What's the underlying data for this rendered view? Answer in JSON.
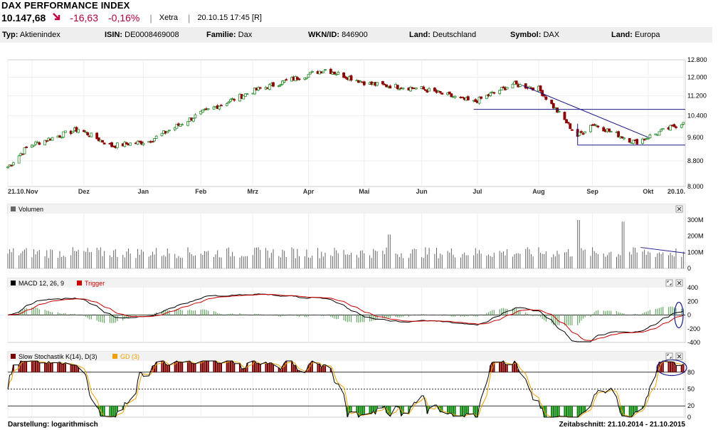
{
  "header": {
    "title": "DAX PERFORMANCE INDEX",
    "price": "10.147,68",
    "change": "-16,63",
    "change_pct": "-0,16%",
    "exchange": "Xetra",
    "timestamp": "20.10.15 17:45 [R]",
    "trend_icon": "arrow-down-right-icon",
    "down_color": "#b0003a"
  },
  "info": [
    {
      "label": "Typ:",
      "value": "Aktienindex"
    },
    {
      "label": "ISIN:",
      "value": "DE0008469008"
    },
    {
      "label": "Familie:",
      "value": "Dax"
    },
    {
      "label": "WKN/ID:",
      "value": "846900"
    },
    {
      "label": "Land:",
      "value": "Deutschland"
    },
    {
      "label": "Symbol:",
      "value": "DAX"
    },
    {
      "label": "Land:",
      "value": "Europa"
    }
  ],
  "footer": {
    "display_label": "Darstellung: logarithmisch",
    "period_label": "Zeitabschnitt: 21.10.2014 - 21.10.2015"
  },
  "chart_data": [
    {
      "type": "candlestick",
      "scale": "log",
      "ylim": [
        8000,
        12800
      ],
      "yticks": [
        "12.800",
        "12.000",
        "11.200",
        "10.400",
        "9.600",
        "8.800",
        "8.000"
      ],
      "ytick_values": [
        12800,
        12000,
        11200,
        10400,
        9600,
        8800,
        8000
      ],
      "xticks": [
        "21.10.",
        "Nov",
        "Dez",
        "Jan",
        "Feb",
        "Mrz",
        "Apr",
        "Mai",
        "Jun",
        "Jul",
        "Aug",
        "Sep",
        "Okt",
        "20.10."
      ],
      "up_color": "#2a8a2a",
      "down_color": "#8b0000",
      "monthly_close": [
        {
          "date": "2014-10-21",
          "value": 8600
        },
        {
          "date": "2014-11-01",
          "value": 9300
        },
        {
          "date": "2014-11-28",
          "value": 9900
        },
        {
          "date": "2014-12-16",
          "value": 9300
        },
        {
          "date": "2015-01-05",
          "value": 9470
        },
        {
          "date": "2015-02-02",
          "value": 10500
        },
        {
          "date": "2015-03-02",
          "value": 11400
        },
        {
          "date": "2015-04-10",
          "value": 12350
        },
        {
          "date": "2015-05-04",
          "value": 11700
        },
        {
          "date": "2015-06-01",
          "value": 11500
        },
        {
          "date": "2015-06-29",
          "value": 10940
        },
        {
          "date": "2015-07-20",
          "value": 11700
        },
        {
          "date": "2015-08-03",
          "value": 11500
        },
        {
          "date": "2015-08-24",
          "value": 9650
        },
        {
          "date": "2015-09-01",
          "value": 10100
        },
        {
          "date": "2015-09-24",
          "value": 9430
        },
        {
          "date": "2015-10-20",
          "value": 10147.68
        }
      ]
    },
    {
      "type": "bar",
      "title": "Volumen",
      "yticks": [
        "300M",
        "200M",
        "100M",
        "0"
      ],
      "ytick_values": [
        300,
        200,
        100,
        0
      ],
      "unit": "M",
      "typical_value": 115,
      "peaks": [
        {
          "date": "2015-05-15",
          "value": 210
        },
        {
          "date": "2015-08-24",
          "value": 300
        },
        {
          "date": "2015-09-18",
          "value": 290
        }
      ],
      "bar_color": "#666666"
    },
    {
      "type": "line",
      "title": "MACD 12, 26, 9",
      "series": [
        {
          "name": "MACD 12, 26, 9",
          "color": "#000000"
        },
        {
          "name": "Trigger",
          "color": "#cc0000"
        }
      ],
      "histogram_color": "#6aa86a",
      "yticks": [
        "400",
        "200",
        "0",
        "-200",
        "-400"
      ],
      "ytick_values": [
        400,
        200,
        0,
        -200,
        -400
      ],
      "ylim": [
        -400,
        400
      ]
    },
    {
      "type": "area",
      "title": "Slow Stochastik K(14), D(3)",
      "series": [
        {
          "name": "Slow Stochastik K(14), D(3)",
          "color": "#000000"
        },
        {
          "name": "GD (3)",
          "color": "#f0a000"
        }
      ],
      "overbought_color": "#7a0000",
      "oversold_color": "#118811",
      "yticks": [
        "80",
        "50",
        "20",
        "0"
      ],
      "ytick_values": [
        80,
        50,
        20,
        0
      ],
      "ylim": [
        0,
        100
      ]
    }
  ]
}
